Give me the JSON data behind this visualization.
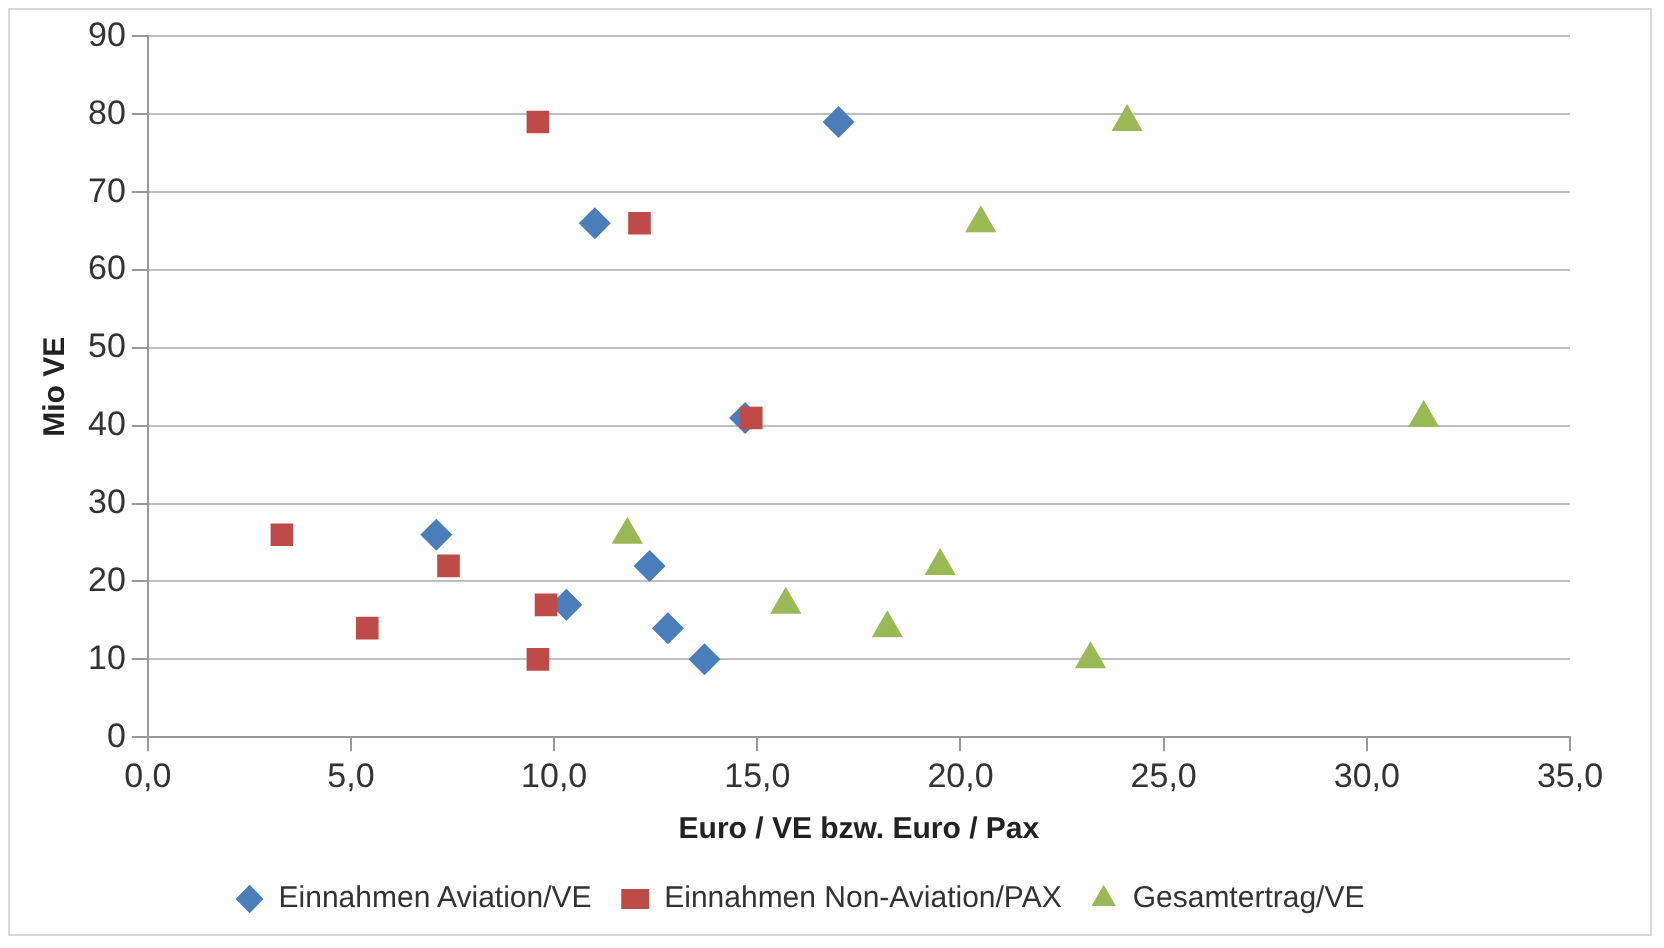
{
  "chart_data": {
    "type": "scatter",
    "xlabel": "Euro / VE bzw. Euro / Pax",
    "ylabel": "Mio VE",
    "xlim": [
      0,
      35
    ],
    "ylim": [
      0,
      90
    ],
    "xticks": [
      {
        "value": 0,
        "label": "0,0"
      },
      {
        "value": 5,
        "label": "5,0"
      },
      {
        "value": 10,
        "label": "10,0"
      },
      {
        "value": 15,
        "label": "15,0"
      },
      {
        "value": 20,
        "label": "20,0"
      },
      {
        "value": 25,
        "label": "25,0"
      },
      {
        "value": 30,
        "label": "30,0"
      },
      {
        "value": 35,
        "label": "35,0"
      }
    ],
    "yticks": [
      0,
      10,
      20,
      30,
      40,
      50,
      60,
      70,
      80,
      90
    ],
    "grid": "y",
    "legend": "bottom",
    "series": [
      {
        "name": "Einnahmen Aviation/VE",
        "color": "#4a7ebb",
        "marker": "diamond",
        "x": [
          17.0,
          11.0,
          14.7,
          7.1,
          12.35,
          10.3,
          12.8,
          13.7
        ],
        "values": [
          79,
          66,
          41,
          26,
          22,
          17,
          14,
          10
        ]
      },
      {
        "name": "Einnahmen Non-Aviation/PAX",
        "color": "#be4b48",
        "marker": "square",
        "x": [
          9.6,
          12.1,
          14.85,
          3.3,
          7.4,
          9.8,
          5.4,
          9.6
        ],
        "values": [
          79,
          66,
          41,
          26,
          22,
          17,
          14,
          10
        ]
      },
      {
        "name": "Gesamtertrag/VE",
        "color": "#98b954",
        "marker": "triangle",
        "x": [
          24.1,
          20.5,
          31.4,
          11.8,
          19.5,
          15.7,
          18.2,
          23.2
        ],
        "values": [
          79,
          66,
          41,
          26,
          22,
          17,
          14,
          10
        ]
      }
    ]
  }
}
